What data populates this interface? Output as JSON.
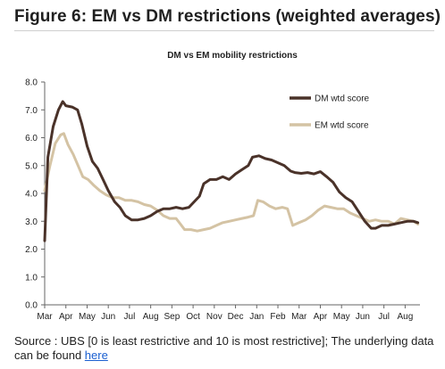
{
  "figure_title": "Figure 6: EM vs DM restrictions (weighted averages)",
  "source_text": "Source : UBS [0 is least restrictive and 10 is most restrictive]; The underlying data can be found ",
  "source_link_text": "here",
  "colors": {
    "dm": "#4a3229",
    "em": "#d4c3a4",
    "axis": "#666666",
    "text": "#1f1f1f",
    "link": "#1a5fd0"
  },
  "chart_data": {
    "type": "line",
    "title": "DM vs EM mobility restrictions",
    "xlabel": "",
    "ylabel": "",
    "ylim": [
      0,
      8
    ],
    "yticks": [
      "0.0",
      "1.0",
      "2.0",
      "3.0",
      "4.0",
      "5.0",
      "6.0",
      "7.0",
      "8.0"
    ],
    "x_tick_labels": [
      "Mar",
      "Apr",
      "May",
      "Jun",
      "Jul",
      "Aug",
      "Sep",
      "Oct",
      "Nov",
      "Dec",
      "Jan",
      "Feb",
      "Mar",
      "Apr",
      "May",
      "Jun",
      "Jul",
      "Aug"
    ],
    "x_unit": "month index (0 = Mar 2020)",
    "xlim": [
      0,
      17.7
    ],
    "grid": false,
    "legend_position": "top-right",
    "series": [
      {
        "name": "DM wtd score",
        "color": "#4a3229",
        "points": [
          [
            0.0,
            2.3
          ],
          [
            0.15,
            5.3
          ],
          [
            0.4,
            6.4
          ],
          [
            0.65,
            7.0
          ],
          [
            0.85,
            7.3
          ],
          [
            1.0,
            7.15
          ],
          [
            1.3,
            7.1
          ],
          [
            1.55,
            7.0
          ],
          [
            1.75,
            6.5
          ],
          [
            2.0,
            5.7
          ],
          [
            2.25,
            5.15
          ],
          [
            2.5,
            4.9
          ],
          [
            2.75,
            4.5
          ],
          [
            3.0,
            4.1
          ],
          [
            3.3,
            3.7
          ],
          [
            3.55,
            3.5
          ],
          [
            3.8,
            3.2
          ],
          [
            4.1,
            3.05
          ],
          [
            4.4,
            3.05
          ],
          [
            4.7,
            3.1
          ],
          [
            5.0,
            3.2
          ],
          [
            5.3,
            3.35
          ],
          [
            5.6,
            3.45
          ],
          [
            5.9,
            3.45
          ],
          [
            6.2,
            3.5
          ],
          [
            6.5,
            3.45
          ],
          [
            6.8,
            3.5
          ],
          [
            7.05,
            3.7
          ],
          [
            7.3,
            3.9
          ],
          [
            7.5,
            4.35
          ],
          [
            7.8,
            4.5
          ],
          [
            8.1,
            4.5
          ],
          [
            8.4,
            4.6
          ],
          [
            8.7,
            4.5
          ],
          [
            9.0,
            4.7
          ],
          [
            9.3,
            4.85
          ],
          [
            9.6,
            5.0
          ],
          [
            9.8,
            5.3
          ],
          [
            10.1,
            5.35
          ],
          [
            10.4,
            5.25
          ],
          [
            10.7,
            5.2
          ],
          [
            11.0,
            5.1
          ],
          [
            11.3,
            5.0
          ],
          [
            11.6,
            4.8
          ],
          [
            11.8,
            4.75
          ],
          [
            12.1,
            4.72
          ],
          [
            12.4,
            4.75
          ],
          [
            12.7,
            4.7
          ],
          [
            13.0,
            4.78
          ],
          [
            13.3,
            4.6
          ],
          [
            13.6,
            4.4
          ],
          [
            13.9,
            4.05
          ],
          [
            14.2,
            3.85
          ],
          [
            14.5,
            3.7
          ],
          [
            14.8,
            3.35
          ],
          [
            15.1,
            3.0
          ],
          [
            15.4,
            2.75
          ],
          [
            15.6,
            2.75
          ],
          [
            15.9,
            2.85
          ],
          [
            16.2,
            2.85
          ],
          [
            16.5,
            2.9
          ],
          [
            16.8,
            2.95
          ],
          [
            17.1,
            3.0
          ],
          [
            17.4,
            3.0
          ],
          [
            17.6,
            2.95
          ]
        ]
      },
      {
        "name": "EM wtd score",
        "color": "#d4c3a4",
        "points": [
          [
            0.0,
            4.1
          ],
          [
            0.25,
            5.0
          ],
          [
            0.5,
            5.8
          ],
          [
            0.75,
            6.1
          ],
          [
            0.9,
            6.15
          ],
          [
            1.1,
            5.75
          ],
          [
            1.35,
            5.4
          ],
          [
            1.6,
            4.95
          ],
          [
            1.8,
            4.6
          ],
          [
            2.05,
            4.5
          ],
          [
            2.3,
            4.3
          ],
          [
            2.6,
            4.1
          ],
          [
            2.9,
            3.95
          ],
          [
            3.2,
            3.85
          ],
          [
            3.5,
            3.85
          ],
          [
            3.8,
            3.75
          ],
          [
            4.1,
            3.75
          ],
          [
            4.4,
            3.7
          ],
          [
            4.7,
            3.6
          ],
          [
            5.0,
            3.55
          ],
          [
            5.3,
            3.4
          ],
          [
            5.6,
            3.2
          ],
          [
            5.9,
            3.1
          ],
          [
            6.2,
            3.1
          ],
          [
            6.4,
            2.9
          ],
          [
            6.6,
            2.7
          ],
          [
            6.9,
            2.7
          ],
          [
            7.2,
            2.65
          ],
          [
            7.5,
            2.7
          ],
          [
            7.8,
            2.75
          ],
          [
            8.1,
            2.85
          ],
          [
            8.4,
            2.95
          ],
          [
            8.7,
            3.0
          ],
          [
            9.0,
            3.05
          ],
          [
            9.3,
            3.1
          ],
          [
            9.6,
            3.15
          ],
          [
            9.85,
            3.2
          ],
          [
            10.05,
            3.75
          ],
          [
            10.3,
            3.7
          ],
          [
            10.6,
            3.55
          ],
          [
            10.9,
            3.45
          ],
          [
            11.2,
            3.5
          ],
          [
            11.45,
            3.45
          ],
          [
            11.7,
            2.85
          ],
          [
            12.0,
            2.95
          ],
          [
            12.3,
            3.05
          ],
          [
            12.6,
            3.2
          ],
          [
            12.9,
            3.4
          ],
          [
            13.2,
            3.55
          ],
          [
            13.5,
            3.5
          ],
          [
            13.8,
            3.45
          ],
          [
            14.1,
            3.45
          ],
          [
            14.4,
            3.3
          ],
          [
            14.7,
            3.2
          ],
          [
            15.0,
            3.1
          ],
          [
            15.3,
            3.0
          ],
          [
            15.6,
            3.05
          ],
          [
            15.9,
            3.0
          ],
          [
            16.2,
            3.0
          ],
          [
            16.5,
            2.9
          ],
          [
            16.8,
            3.1
          ],
          [
            17.1,
            3.05
          ],
          [
            17.4,
            3.0
          ],
          [
            17.6,
            2.9
          ]
        ]
      }
    ]
  }
}
